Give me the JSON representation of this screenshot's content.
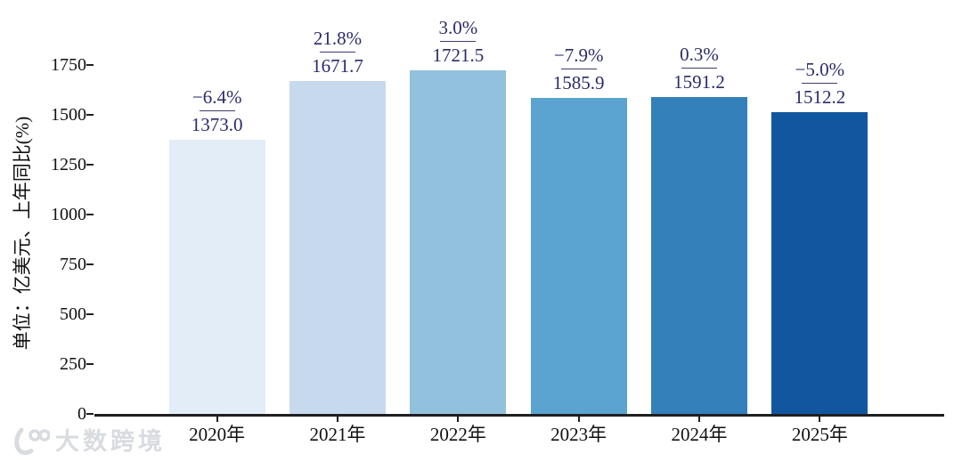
{
  "chart_data": {
    "type": "bar",
    "title": "",
    "xlabel": "",
    "ylabel": "单位：亿美元、上年同比(%)",
    "categories": [
      "2020年",
      "2021年",
      "2022年",
      "2023年",
      "2024年",
      "2025年"
    ],
    "values": [
      1373.0,
      1671.7,
      1721.5,
      1585.9,
      1591.2,
      1512.2
    ],
    "value_labels": [
      "1373.0",
      "1671.7",
      "1721.5",
      "1585.9",
      "1591.2",
      "1512.2"
    ],
    "growth_labels": [
      "−6.4%",
      "21.8%",
      "3.0%",
      "−7.9%",
      "0.3%",
      "−5.0%"
    ],
    "yticks": [
      0,
      250,
      500,
      750,
      1000,
      1250,
      1500,
      1750
    ],
    "ylim": [
      0,
      2075
    ],
    "grid": false,
    "legend": "none",
    "bar_colors": [
      "#e3edf7",
      "#c7d9ec",
      "#92c1de",
      "#5ba3d0",
      "#3380ba",
      "#11579f"
    ]
  },
  "colors": {
    "annotation_text": "#2b2b6b",
    "divider_line": "#3c3c6e",
    "axis_line": "#1f1f1f",
    "tick_text": "#111111",
    "watermark": "#d8dbdf"
  },
  "watermark": {
    "logo": "100-smile-logo",
    "text": "大数跨境"
  }
}
